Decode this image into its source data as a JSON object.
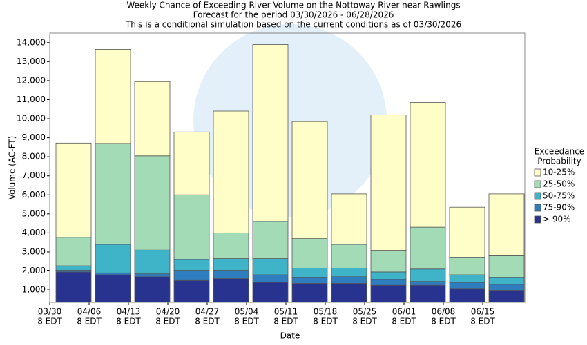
{
  "chart_data": {
    "type": "stacked_bar",
    "title": "Weekly Chance of Exceeding River Volume on the Nottoway River near Rawlings",
    "subtitle": "Forecast for the period 03/30/2026 - 06/28/2026",
    "note": "This is a conditional simulation based on the current conditions as of 03/30/2026",
    "x_label": "Date",
    "y_label": "Volume (AC-FT)",
    "legend_title": [
      "Exceedance",
      "Probability"
    ],
    "categories": [
      [
        "03/30",
        "8 EDT"
      ],
      [
        "04/06",
        "8 EDT"
      ],
      [
        "04/13",
        "8 EDT"
      ],
      [
        "04/20",
        "8 EDT"
      ],
      [
        "04/27",
        "8 EDT"
      ],
      [
        "05/04",
        "8 EDT"
      ],
      [
        "05/11",
        "8 EDT"
      ],
      [
        "05/18",
        "8 EDT"
      ],
      [
        "05/25",
        "8 EDT"
      ],
      [
        "06/01",
        "8 EDT"
      ],
      [
        "06/08",
        "8 EDT"
      ],
      [
        "06/15",
        "8 EDT"
      ]
    ],
    "series": [
      {
        "name": "> 90%",
        "color": "#27338f",
        "values": [
          1950,
          1800,
          1700,
          1500,
          1600,
          1400,
          1350,
          1350,
          1250,
          1250,
          1050,
          950
        ]
      },
      {
        "name": "75-90%",
        "color": "#2e7dbf",
        "values": [
          50,
          100,
          150,
          500,
          400,
          400,
          300,
          350,
          300,
          200,
          350,
          350
        ]
      },
      {
        "name": "50-75%",
        "color": "#3fb3c8",
        "values": [
          270,
          1500,
          1250,
          600,
          650,
          850,
          500,
          450,
          400,
          650,
          400,
          350
        ]
      },
      {
        "name": "25-50%",
        "color": "#a3dbb7",
        "values": [
          1500,
          5300,
          4950,
          3400,
          1350,
          1950,
          1550,
          1250,
          1100,
          2200,
          900,
          1150
        ]
      },
      {
        "name": "10-25%",
        "color": "#fffdc8",
        "values": [
          4950,
          4950,
          3900,
          3300,
          6400,
          9300,
          6150,
          2650,
          7150,
          6550,
          2650,
          3250
        ]
      }
    ],
    "ylim": [
      350,
      14500
    ],
    "yticks": [
      {
        "value": 1000,
        "label": "1,000"
      },
      {
        "value": 2000,
        "label": "2,000"
      },
      {
        "value": 3000,
        "label": "3,000"
      },
      {
        "value": 4000,
        "label": "4,000"
      },
      {
        "value": 5000,
        "label": "5,000"
      },
      {
        "value": 6000,
        "label": "6,000"
      },
      {
        "value": 7000,
        "label": "7,000"
      },
      {
        "value": 8000,
        "label": "8,000"
      },
      {
        "value": 9000,
        "label": "9,000"
      },
      {
        "value": 10000,
        "label": "10,000"
      },
      {
        "value": 11000,
        "label": "11,000"
      },
      {
        "value": 12000,
        "label": "12,000"
      },
      {
        "value": 13000,
        "label": "13,000"
      },
      {
        "value": 14000,
        "label": "14,000"
      }
    ],
    "grid": false,
    "legend": "right"
  }
}
